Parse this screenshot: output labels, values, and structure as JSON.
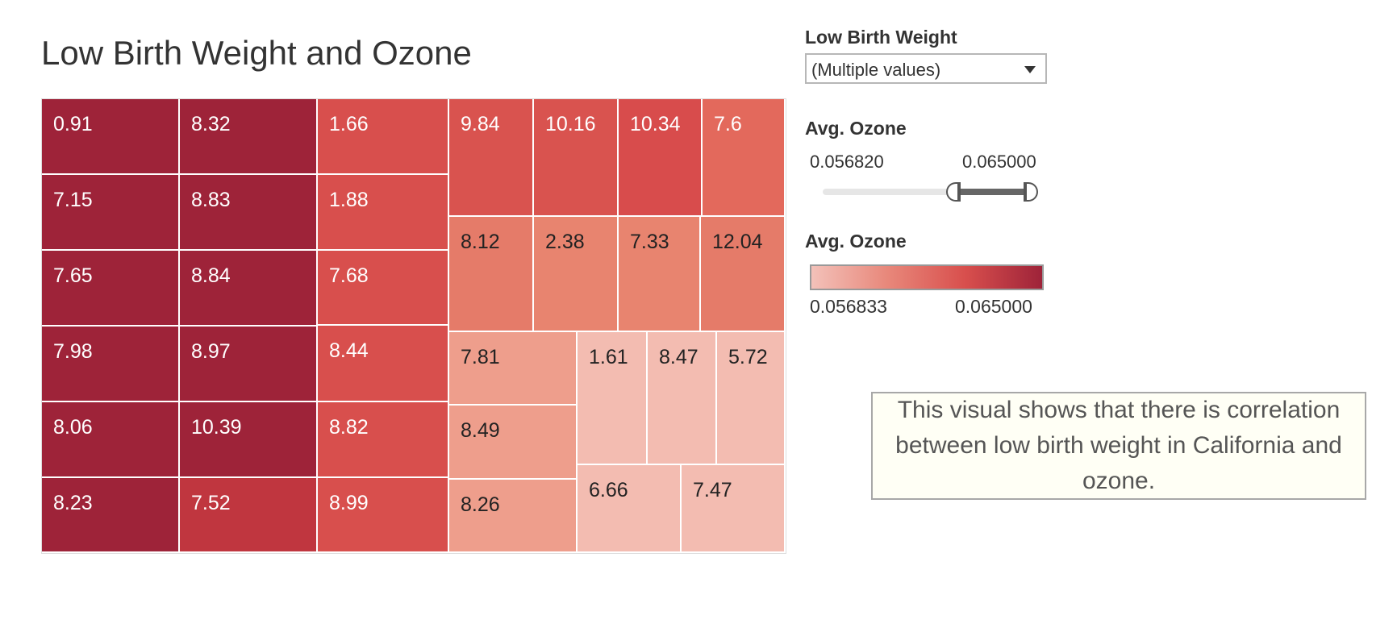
{
  "title": "Low Birth Weight and Ozone",
  "filters": {
    "low_birth_weight": {
      "label": "Low Birth Weight",
      "selected": "(Multiple values)"
    },
    "avg_ozone_range": {
      "label": "Avg. Ozone",
      "min": "0.056820",
      "max": "0.065000",
      "range_fraction": [
        0.66,
        0.98
      ]
    }
  },
  "legend": {
    "title": "Avg. Ozone",
    "min_label": "0.056833",
    "max_label": "0.065000",
    "colors": [
      "#f3c1b9",
      "#e8877a",
      "#d84f4d",
      "#9e2339"
    ]
  },
  "note": "This visual shows that there is correlation between low birth weight in California and ozone.",
  "chart_data": {
    "type": "treemap",
    "measure_label": "Low Birth Weight",
    "color_measure": "Avg. Ozone",
    "values": [
      0.91,
      7.15,
      7.65,
      7.98,
      8.06,
      8.23,
      8.32,
      8.83,
      8.84,
      8.97,
      10.39,
      7.52,
      1.66,
      1.88,
      7.68,
      8.44,
      8.82,
      8.99,
      9.84,
      10.16,
      10.34,
      7.6,
      8.12,
      2.38,
      7.33,
      12.04,
      7.81,
      8.49,
      8.26,
      1.61,
      8.47,
      5.72,
      6.66,
      7.47
    ],
    "color_levels": [
      "#9e2339",
      "#9e2339",
      "#9e2339",
      "#9e2339",
      "#9e2339",
      "#9e2339",
      "#9e2339",
      "#9e2339",
      "#9e2339",
      "#9e2339",
      "#9e2339",
      "#c0363f",
      "#d84f4d",
      "#d84f4d",
      "#d84f4d",
      "#d84f4d",
      "#d84f4d",
      "#d84f4d",
      "#d9534f",
      "#d9534f",
      "#d84c4c",
      "#e3695c",
      "#e57b69",
      "#e8846f",
      "#e8846f",
      "#e57b69",
      "#ee9e8c",
      "#ee9e8c",
      "#ee9e8c",
      "#f3bcb1",
      "#f3bcb1",
      "#f3bcb1",
      "#f3bcb1",
      "#f3bcb1"
    ]
  }
}
